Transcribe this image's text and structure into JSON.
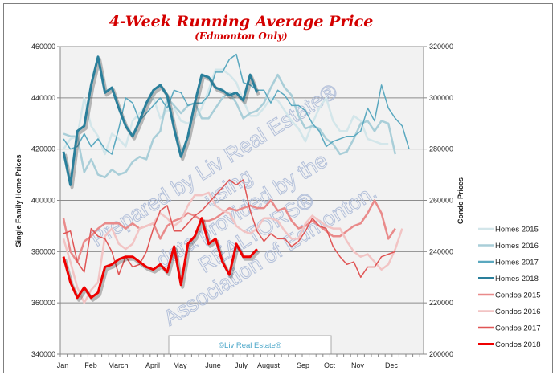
{
  "chart_data": {
    "type": "line",
    "title": "4-Week Running Average Price",
    "subtitle": "(Edmonton Only)",
    "ylabel": "Single Family Home Prices",
    "y2label": "Condo Prices",
    "ylim": [
      340000,
      460000
    ],
    "y2lim": [
      200000,
      320000
    ],
    "yticks": [
      "340000",
      "360000",
      "380000",
      "400000",
      "420000",
      "440000",
      "460000"
    ],
    "y2ticks": [
      "200000",
      "220000",
      "240000",
      "260000",
      "280000",
      "300000",
      "320000"
    ],
    "xticks": [
      "Jan",
      "Feb",
      "March",
      "April",
      "May",
      "June",
      "July",
      "August",
      "Sep",
      "Oct",
      "Nov",
      "Dec"
    ],
    "x_unit": "week of year",
    "grid": true,
    "legend_position": "right",
    "copyright_box": "©Liv Real Estate®",
    "watermark": [
      "Prepared by Liv Real Estate®",
      "using",
      "data provided by the",
      "REALTORS®",
      "Association of Edmonton."
    ],
    "series": [
      {
        "name": "Homes 2015",
        "axis": "left",
        "color": "#d3e6ea",
        "width": 2.5,
        "values": [
          420000,
          424000,
          425000,
          440000,
          429000,
          425000,
          418000,
          426000,
          424000,
          421000,
          431000,
          434000,
          437000,
          440000,
          432000,
          435000,
          436000,
          431000,
          430000,
          432000,
          436000,
          443000,
          451000,
          451000,
          449000,
          446000,
          439000,
          433000,
          433000,
          436000,
          440000,
          439000,
          435000,
          431000,
          428000,
          423000,
          430000,
          436000,
          440000,
          431000,
          427000,
          427000,
          433000,
          431000,
          424000,
          423000,
          422000,
          422000
        ]
      },
      {
        "name": "Homes 2016",
        "axis": "left",
        "color": "#a9ced8",
        "width": 2.5,
        "values": [
          426000,
          425000,
          425000,
          411000,
          416000,
          410000,
          409000,
          412000,
          410000,
          411000,
          415000,
          417000,
          416000,
          424000,
          427000,
          440000,
          437000,
          434000,
          437000,
          438000,
          432000,
          432000,
          436000,
          440000,
          442000,
          438000,
          432000,
          434000,
          435000,
          438000,
          444000,
          449000,
          444000,
          441000,
          433000,
          428000,
          429000,
          428000,
          424000,
          422000,
          418000,
          419000,
          424000,
          430000,
          431000,
          427000,
          431000,
          430000,
          418000
        ]
      },
      {
        "name": "Homes 2017",
        "axis": "left",
        "color": "#5aa8bf",
        "width": 1.5,
        "values": [
          424000,
          420000,
          421000,
          426000,
          421000,
          424000,
          420000,
          418000,
          428000,
          440000,
          438000,
          431000,
          434000,
          437000,
          440000,
          436000,
          443000,
          442000,
          437000,
          438000,
          438000,
          441000,
          450000,
          450000,
          455000,
          457000,
          446000,
          445000,
          443000,
          443000,
          438000,
          443000,
          441000,
          437000,
          437000,
          435000,
          430000,
          427000,
          421000,
          423000,
          424000,
          425000,
          425000,
          427000,
          436000,
          431000,
          445000,
          436000,
          432000,
          429000,
          420000
        ]
      },
      {
        "name": "Homes 2018",
        "axis": "left",
        "color": "#2a7f9b",
        "width": 3,
        "values": [
          419000,
          406000,
          427000,
          429000,
          445000,
          456000,
          442000,
          444000,
          436000,
          429000,
          425000,
          431000,
          438000,
          443000,
          445000,
          441000,
          428000,
          417000,
          425000,
          438000,
          449000,
          448000,
          444000,
          443000,
          441000,
          442000,
          439000,
          449000,
          442000
        ]
      },
      {
        "name": "Condos 2015",
        "axis": "right",
        "color": "#e98a8a",
        "width": 2.5,
        "values": [
          253000,
          240000,
          236000,
          244000,
          246000,
          249000,
          251000,
          251000,
          251000,
          249000,
          251000,
          249000,
          250000,
          251000,
          245000,
          250000,
          252000,
          253000,
          255000,
          254000,
          252000,
          252000,
          253000,
          255000,
          257000,
          256000,
          257000,
          258000,
          257000,
          257000,
          260000,
          256000,
          257000,
          252000,
          249000,
          250000,
          252000,
          250000,
          248000,
          246000,
          246000,
          248000,
          250000,
          251000,
          255000,
          260000,
          255000,
          245000,
          249000
        ]
      },
      {
        "name": "Condos 2016",
        "axis": "right",
        "color": "#f2c4c4",
        "width": 2.5,
        "values": [
          245000,
          236000,
          226000,
          220000,
          225000,
          228000,
          246000,
          249000,
          243000,
          241000,
          243000,
          249000,
          250000,
          251000,
          255000,
          253000,
          250000,
          252000,
          258000,
          262000,
          262000,
          263000,
          258000,
          256000,
          255000,
          250000,
          248000,
          247000,
          249000,
          253000,
          253000,
          252000,
          248000,
          245000,
          245000,
          251000,
          254000,
          252000,
          250000,
          249000,
          249000,
          244000,
          240000,
          238000,
          239000,
          236000,
          233000,
          235000,
          241000,
          249000
        ]
      },
      {
        "name": "Condos 2017",
        "axis": "right",
        "color": "#e05555",
        "width": 1.5,
        "values": [
          247000,
          248000,
          236000,
          232000,
          249000,
          246000,
          245000,
          240000,
          231000,
          238000,
          234000,
          235000,
          240000,
          249000,
          256000,
          258000,
          248000,
          248000,
          251000,
          254000,
          256000,
          259000,
          262000,
          265000,
          268000,
          266000,
          268000,
          256000,
          248000,
          244000,
          247000,
          245000,
          245000,
          242000,
          244000,
          248000,
          253000,
          250000,
          249000,
          242000,
          238000,
          235000,
          236000,
          230000,
          234000,
          234000,
          238000,
          239000,
          240000
        ]
      },
      {
        "name": "Condos 2018",
        "axis": "right",
        "color": "#ee0000",
        "width": 3,
        "values": [
          238000,
          228000,
          222000,
          226000,
          222000,
          224000,
          234000,
          235000,
          237000,
          238000,
          238000,
          236000,
          234000,
          233000,
          235000,
          232000,
          242000,
          227000,
          243000,
          246000,
          253000,
          243000,
          245000,
          236000,
          231000,
          243000,
          238000,
          238000,
          241000
        ]
      }
    ]
  }
}
